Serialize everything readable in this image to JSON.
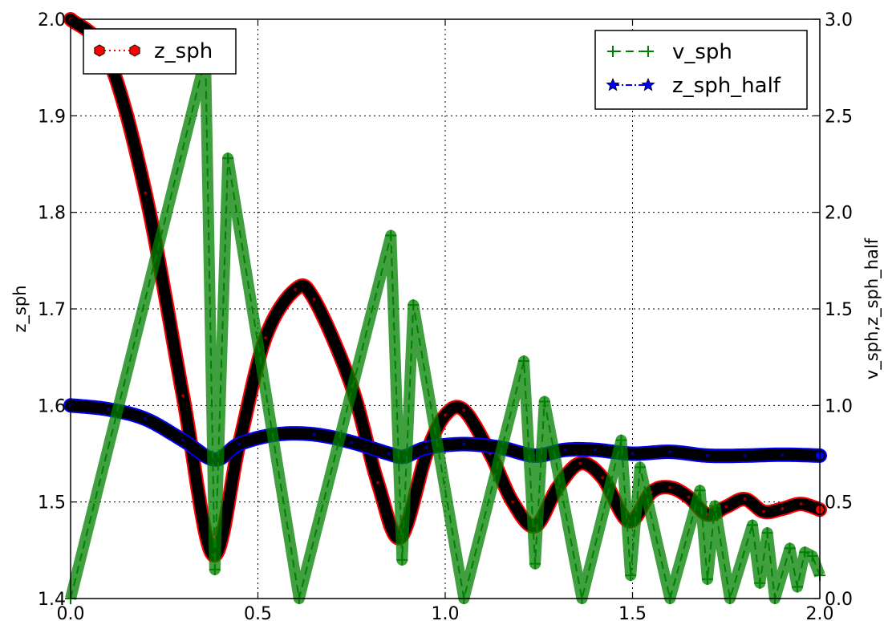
{
  "chart_data": {
    "type": "line",
    "title": "",
    "xlabel": "",
    "ylabel": "z_sph",
    "y2label": "v_sph,z_sph_half",
    "xlim": [
      0.0,
      2.0
    ],
    "ylim": [
      1.4,
      2.0
    ],
    "y2lim": [
      0.0,
      3.0
    ],
    "grid": true,
    "xticks": [
      "0.0",
      "0.5",
      "1.0",
      "1.5",
      "2.0"
    ],
    "yticks": [
      "1.4",
      "1.5",
      "1.6",
      "1.7",
      "1.8",
      "1.9",
      "2.0"
    ],
    "y2ticks": [
      "0.0",
      "0.5",
      "1.0",
      "1.5",
      "2.0",
      "2.5",
      "3.0"
    ],
    "legend_left": {
      "placement": "top-left",
      "entries": [
        {
          "name": "z_sph",
          "color": "#ff0000",
          "marker": "hexagon",
          "linestyle": "dotted"
        }
      ]
    },
    "legend_right": {
      "placement": "top-right",
      "entries": [
        {
          "name": "v_sph",
          "color": "#008000",
          "marker": "plus",
          "linestyle": "dashed"
        },
        {
          "name": "z_sph_half",
          "color": "#0000ff",
          "marker": "star",
          "linestyle": "dashdot"
        }
      ]
    },
    "series": [
      {
        "name": "z_sph",
        "axis": "left",
        "color": "#ff0000",
        "x": [
          0.0,
          0.1,
          0.2,
          0.3,
          0.38,
          0.45,
          0.52,
          0.6,
          0.65,
          0.75,
          0.82,
          0.88,
          0.95,
          1.0,
          1.05,
          1.12,
          1.18,
          1.24,
          1.3,
          1.36,
          1.42,
          1.49,
          1.55,
          1.6,
          1.65,
          1.7,
          1.75,
          1.8,
          1.85,
          1.9,
          1.95,
          2.0
        ],
        "values": [
          2.0,
          1.96,
          1.82,
          1.61,
          1.445,
          1.56,
          1.67,
          1.72,
          1.71,
          1.62,
          1.52,
          1.463,
          1.55,
          1.59,
          1.595,
          1.55,
          1.5,
          1.475,
          1.515,
          1.54,
          1.525,
          1.48,
          1.51,
          1.515,
          1.505,
          1.487,
          1.495,
          1.503,
          1.49,
          1.493,
          1.498,
          1.492
        ]
      },
      {
        "name": "z_sph_half",
        "axis": "right",
        "color": "#0000ff",
        "x": [
          0.0,
          0.1,
          0.2,
          0.3,
          0.385,
          0.45,
          0.55,
          0.65,
          0.75,
          0.85,
          0.89,
          0.95,
          1.05,
          1.15,
          1.24,
          1.32,
          1.4,
          1.5,
          1.6,
          1.7,
          1.8,
          1.9,
          2.0
        ],
        "values": [
          1.0,
          0.98,
          0.93,
          0.82,
          0.72,
          0.8,
          0.85,
          0.85,
          0.81,
          0.75,
          0.735,
          0.78,
          0.8,
          0.78,
          0.74,
          0.77,
          0.77,
          0.75,
          0.76,
          0.74,
          0.74,
          0.745,
          0.74
        ]
      },
      {
        "name": "v_sph",
        "axis": "right",
        "color": "#008000",
        "x": [
          0.0,
          0.36,
          0.385,
          0.42,
          0.61,
          0.855,
          0.885,
          0.915,
          1.05,
          1.21,
          1.24,
          1.265,
          1.365,
          1.47,
          1.495,
          1.52,
          1.6,
          1.68,
          1.7,
          1.72,
          1.76,
          1.82,
          1.84,
          1.86,
          1.88,
          1.92,
          1.94,
          1.96,
          1.98,
          2.0
        ],
        "values": [
          0.0,
          2.8,
          0.15,
          2.28,
          0.0,
          1.88,
          0.2,
          1.52,
          0.0,
          1.23,
          0.18,
          1.02,
          0.0,
          0.82,
          0.12,
          0.68,
          0.0,
          0.56,
          0.1,
          0.48,
          0.0,
          0.38,
          0.08,
          0.34,
          0.0,
          0.26,
          0.06,
          0.24,
          0.22,
          0.12
        ]
      }
    ]
  }
}
